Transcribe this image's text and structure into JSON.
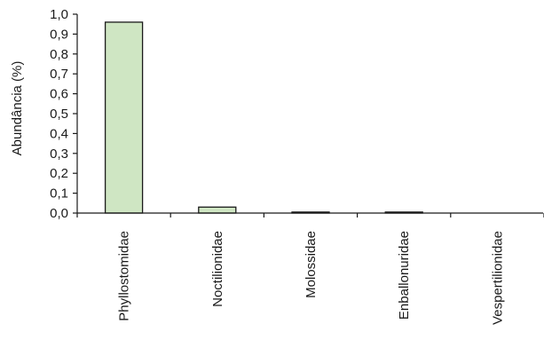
{
  "chart_data": {
    "type": "bar",
    "title": "",
    "xlabel": "",
    "ylabel": "Abundância (%)",
    "categories": [
      "Phyllostomidae",
      "Noctilionidae",
      "Molossidae",
      "Enballonuridae",
      "Vespertilionidae"
    ],
    "values": [
      0.96,
      0.03,
      0.005,
      0.005,
      0.0
    ],
    "ylim": [
      0,
      1.0
    ],
    "yticks": [
      0.0,
      0.1,
      0.2,
      0.3,
      0.4,
      0.5,
      0.6,
      0.7,
      0.8,
      0.9,
      1.0
    ],
    "ytick_labels": [
      "0,0",
      "0,1",
      "0,2",
      "0,3",
      "0,4",
      "0,5",
      "0,6",
      "0,7",
      "0,8",
      "0,9",
      "1,0"
    ],
    "grid": false,
    "bar_color": "#cfe6c3",
    "edge_color": "#1a1a1a"
  }
}
